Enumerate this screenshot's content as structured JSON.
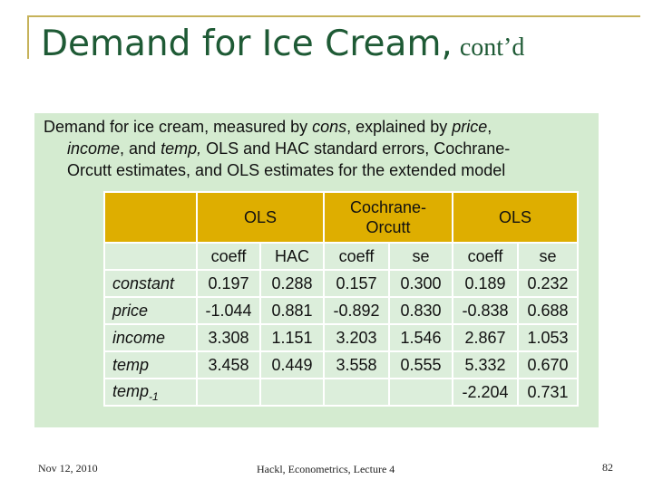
{
  "slide": {
    "title_main": "Demand for Ice Cream,",
    "title_sub": "cont’d",
    "description": {
      "line1_a": "Demand for ice cream, measured by ",
      "line1_b": "cons",
      "line1_c": ", explained by ",
      "line1_d": "price",
      "line1_e": ",",
      "line2_a": "income",
      "line2_b": ", and ",
      "line2_c": "temp,",
      "line2_d": " OLS and HAC standard errors, Cochrane-",
      "line3": "Orcutt estimates, and OLS estimates for the extended model"
    }
  },
  "table": {
    "groups": [
      {
        "label": "OLS"
      },
      {
        "label_line1": "Cochrane-",
        "label_line2": "Orcutt"
      },
      {
        "label": "OLS"
      }
    ],
    "subheaders": [
      "coeff",
      "HAC",
      "coeff",
      "se",
      "coeff",
      "se"
    ],
    "rows": [
      {
        "label": "constant",
        "values": [
          "0.197",
          "0.288",
          "0.157",
          "0.300",
          "0.189",
          "0.232"
        ]
      },
      {
        "label": "price",
        "values": [
          "-1.044",
          "0.881",
          "-0.892",
          "0.830",
          "-0.838",
          "0.688"
        ]
      },
      {
        "label": "income",
        "values": [
          "3.308",
          "1.151",
          "3.203",
          "1.546",
          "2.867",
          "1.053"
        ]
      },
      {
        "label": "temp",
        "values": [
          "3.458",
          "0.449",
          "3.558",
          "0.555",
          "5.332",
          "0.670"
        ]
      },
      {
        "label": "temp",
        "label_sub": "-1",
        "values": [
          "",
          "",
          "",
          "",
          "-2.204",
          "0.731"
        ]
      }
    ]
  },
  "footer": {
    "date": "Nov 12, 2010",
    "center": "Hackl,  Econometrics, Lecture 4",
    "page": "82"
  },
  "colors": {
    "title": "#1e5a35",
    "accent_line": "#c6b25a",
    "panel_bg": "#d4ebd0",
    "table_header": "#deae00",
    "table_cell": "#dceedb"
  }
}
